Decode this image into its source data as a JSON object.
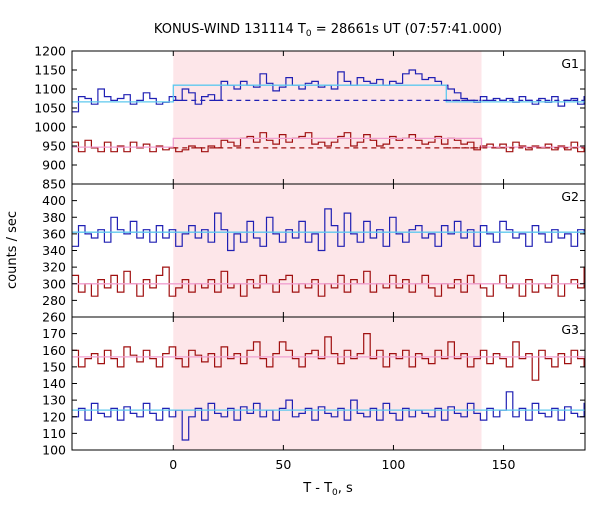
{
  "chart_data": {
    "type": "line",
    "title_prefix": "KONUS-WIND 131114 T",
    "title_sub": "0",
    "title_suffix": " = 28661s UT (07:57:41.000)",
    "xlabel_prefix": "T - T",
    "xlabel_sub": "0",
    "xlabel_suffix": ", s",
    "ylabel": "counts / sec",
    "xlim": [
      -46,
      187
    ],
    "xticks": [
      0,
      50,
      100,
      150
    ],
    "highlight": {
      "from": 0,
      "to": 140,
      "color": "#fde6e9"
    },
    "bin_start": -46,
    "bin_width": 2.944,
    "colors": {
      "blue": "#2020b4",
      "red": "#a01010",
      "cyan": "#5ec8ee",
      "pink": "#f0a0d0"
    },
    "panels": [
      {
        "name": "G1",
        "ylim": [
          850,
          1200
        ],
        "yticks": [
          850,
          900,
          950,
          1000,
          1050,
          1100,
          1150,
          1200
        ],
        "series": [
          {
            "color": "blue",
            "values": [
              1040,
              1080,
              1075,
              1060,
              1100,
              1080,
              1070,
              1075,
              1085,
              1060,
              1070,
              1090,
              1075,
              1060,
              1065,
              1080,
              1070,
              1100,
              1090,
              1060,
              1080,
              1085,
              1070,
              1120,
              1110,
              1100,
              1120,
              1110,
              1105,
              1140,
              1115,
              1095,
              1105,
              1130,
              1110,
              1100,
              1115,
              1120,
              1105,
              1110,
              1100,
              1145,
              1120,
              1110,
              1130,
              1120,
              1115,
              1125,
              1110,
              1120,
              1115,
              1140,
              1150,
              1140,
              1125,
              1130,
              1120,
              1110,
              1100,
              1090,
              1075,
              1070,
              1065,
              1080,
              1070,
              1075,
              1070,
              1075,
              1065,
              1080,
              1070,
              1060,
              1075,
              1065,
              1080,
              1055,
              1070,
              1075,
              1060,
              1080
            ]
          },
          {
            "color": "red",
            "values": [
              960,
              935,
              965,
              945,
              935,
              960,
              935,
              950,
              935,
              960,
              945,
              955,
              935,
              950,
              940,
              945,
              935,
              940,
              950,
              945,
              935,
              950,
              945,
              965,
              960,
              950,
              970,
              975,
              960,
              985,
              965,
              955,
              980,
              960,
              970,
              975,
              985,
              955,
              960,
              950,
              960,
              975,
              985,
              950,
              960,
              980,
              965,
              950,
              955,
              975,
              965,
              970,
              980,
              965,
              955,
              960,
              975,
              955,
              970,
              965,
              955,
              960,
              940,
              950,
              955,
              945,
              955,
              935,
              960,
              950,
              940,
              950,
              945,
              955,
              940,
              950,
              940,
              960,
              935,
              950
            ]
          },
          {
            "color": "cyan",
            "steps": [
              [
                -46,
                1066
              ],
              [
                0,
                1110
              ],
              [
                124,
                1066
              ],
              [
                187,
                1066
              ]
            ]
          },
          {
            "color": "pink",
            "steps": [
              [
                -46,
                947
              ],
              [
                0,
                970
              ],
              [
                140,
                947
              ],
              [
                187,
                947
              ]
            ]
          },
          {
            "color": "blue",
            "dashed": true,
            "steps": [
              [
                0,
                1070
              ],
              [
                140,
                1070
              ]
            ]
          },
          {
            "color": "blue",
            "dashed": true,
            "steps": [
              [
                124,
                1070
              ],
              [
                187,
                1070
              ]
            ]
          },
          {
            "color": "red",
            "dashed": true,
            "steps": [
              [
                0,
                945
              ],
              [
                140,
                945
              ]
            ]
          },
          {
            "color": "red",
            "dashed": true,
            "steps": [
              [
                124,
                945
              ],
              [
                187,
                945
              ]
            ]
          }
        ]
      },
      {
        "name": "G2",
        "ylim": [
          260,
          420
        ],
        "yticks": [
          260,
          280,
          300,
          320,
          340,
          360,
          380,
          400
        ],
        "series": [
          {
            "color": "blue",
            "values": [
              345,
              370,
              360,
              355,
              365,
              350,
              380,
              365,
              360,
              375,
              355,
              365,
              350,
              370,
              355,
              365,
              345,
              360,
              370,
              355,
              365,
              350,
              385,
              365,
              340,
              360,
              350,
              375,
              355,
              345,
              380,
              360,
              350,
              365,
              355,
              375,
              350,
              360,
              340,
              390,
              370,
              345,
              385,
              360,
              350,
              375,
              355,
              365,
              345,
              380,
              360,
              350,
              365,
              370,
              355,
              360,
              345,
              370,
              360,
              375,
              355,
              365,
              345,
              370,
              360,
              350,
              375,
              365,
              355,
              360,
              345,
              370,
              360,
              350,
              365,
              355,
              360,
              345,
              365,
              360
            ]
          },
          {
            "color": "red",
            "values": [
              310,
              290,
              300,
              285,
              305,
              295,
              310,
              290,
              315,
              300,
              285,
              305,
              295,
              310,
              320,
              285,
              295,
              305,
              290,
              300,
              295,
              305,
              290,
              315,
              295,
              300,
              285,
              305,
              295,
              310,
              300,
              290,
              305,
              310,
              290,
              300,
              295,
              305,
              285,
              300,
              295,
              310,
              290,
              305,
              300,
              315,
              290,
              300,
              295,
              310,
              295,
              305,
              290,
              300,
              310,
              295,
              285,
              300,
              295,
              305,
              290,
              310,
              300,
              295,
              285,
              300,
              310,
              295,
              300,
              285,
              305,
              290,
              300,
              295,
              310,
              285,
              300,
              305,
              295,
              320
            ]
          },
          {
            "color": "cyan",
            "steps": [
              [
                -46,
                362
              ],
              [
                187,
                362
              ]
            ]
          },
          {
            "color": "pink",
            "steps": [
              [
                -46,
                300
              ],
              [
                187,
                300
              ]
            ]
          }
        ]
      },
      {
        "name": "G3",
        "ylim": [
          100,
          180
        ],
        "yticks": [
          100,
          110,
          120,
          130,
          140,
          150,
          160,
          170,
          180
        ],
        "series": [
          {
            "color": "red",
            "values": [
              160,
              150,
              155,
              158,
              152,
              160,
              155,
              150,
              162,
              157,
              153,
              160,
              155,
              150,
              158,
              162,
              155,
              150,
              160,
              157,
              153,
              158,
              150,
              162,
              155,
              158,
              152,
              160,
              165,
              155,
              150,
              158,
              165,
              160,
              155,
              150,
              158,
              160,
              155,
              168,
              158,
              152,
              160,
              155,
              158,
              170,
              155,
              160,
              150,
              158,
              155,
              160,
              150,
              158,
              155,
              152,
              160,
              155,
              165,
              155,
              158,
              150,
              155,
              160,
              152,
              158,
              155,
              150,
              165,
              155,
              158,
              142,
              160,
              155,
              150,
              158,
              152,
              160,
              155,
              150
            ]
          },
          {
            "color": "blue",
            "values": [
              120,
              125,
              118,
              128,
              122,
              120,
              125,
              118,
              126,
              122,
              120,
              128,
              122,
              118,
              125,
              120,
              124,
              106,
              120,
              125,
              118,
              128,
              122,
              120,
              125,
              118,
              126,
              122,
              128,
              120,
              124,
              118,
              125,
              130,
              120,
              122,
              125,
              118,
              126,
              122,
              120,
              125,
              118,
              130,
              122,
              120,
              125,
              118,
              128,
              122,
              118,
              125,
              120,
              124,
              122,
              120,
              125,
              118,
              126,
              122,
              120,
              128,
              122,
              118,
              125,
              120,
              124,
              135,
              120,
              125,
              118,
              128,
              122,
              120,
              125,
              118,
              126,
              122,
              120,
              128
            ]
          },
          {
            "color": "cyan",
            "steps": [
              [
                -46,
                124
              ],
              [
                187,
                124
              ]
            ]
          },
          {
            "color": "pink",
            "steps": [
              [
                -46,
                156
              ],
              [
                187,
                156
              ]
            ]
          }
        ]
      }
    ]
  }
}
